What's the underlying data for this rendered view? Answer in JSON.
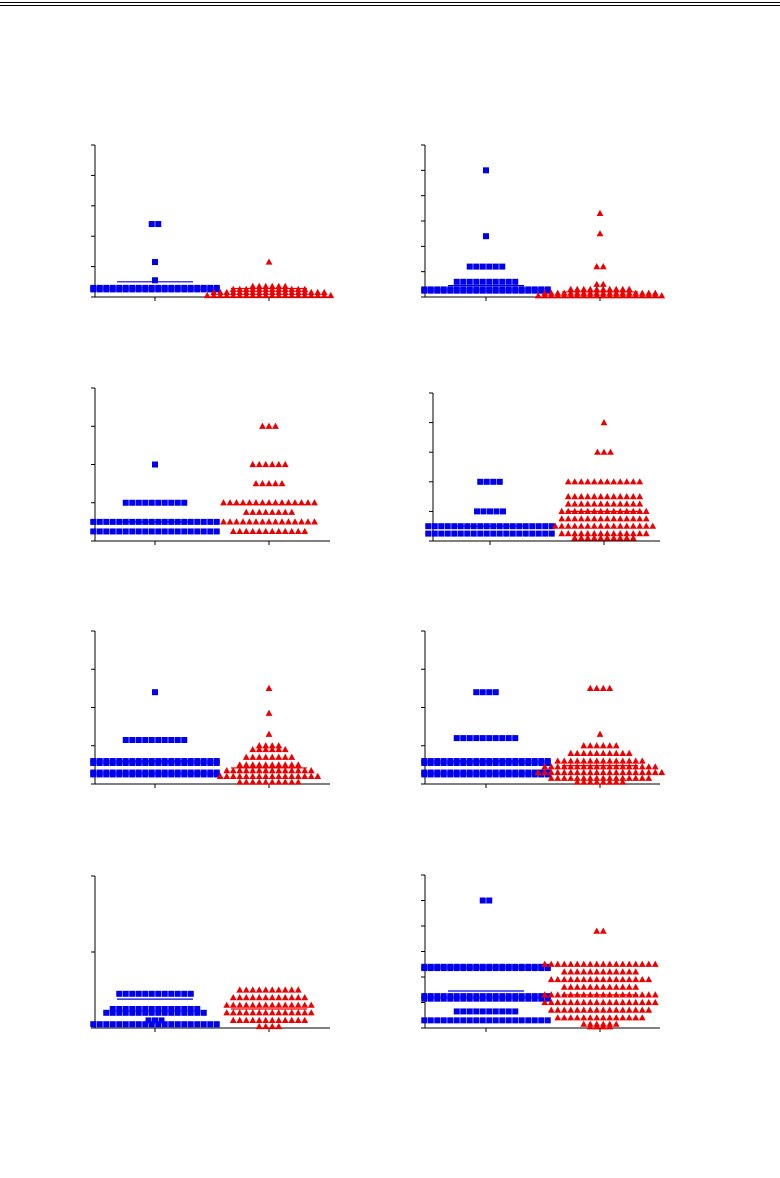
{
  "page": {
    "header_rule_color": "#000000"
  },
  "colors": {
    "group_a": "#0000ee",
    "group_b": "#ee0000",
    "axis": "#000000"
  },
  "chart_data": [
    {
      "type": "scatter",
      "ylim": [
        0,
        5
      ],
      "yticks": 5,
      "groups": [
        {
          "marker": "square",
          "color": "#0000ee",
          "mean": 0.5,
          "points": [
            {
              "y": 2.4,
              "n": 2
            },
            {
              "y": 1.15,
              "n": 1
            },
            {
              "y": 0.55,
              "n": 1
            },
            {
              "y": 0.3,
              "n": 20
            },
            {
              "y": 0.25,
              "n": 20
            }
          ]
        },
        {
          "marker": "triangle",
          "color": "#ee0000",
          "mean": 0.28,
          "points": [
            {
              "y": 1.15,
              "n": 1
            },
            {
              "y": 0.35,
              "n": 6
            },
            {
              "y": 0.25,
              "n": 12
            },
            {
              "y": 0.15,
              "n": 18
            },
            {
              "y": 0.05,
              "n": 20
            }
          ]
        }
      ]
    },
    {
      "type": "scatter",
      "ylim": [
        0,
        6
      ],
      "yticks": 6,
      "groups": [
        {
          "marker": "square",
          "color": "#0000ee",
          "mean": 0.45,
          "points": [
            {
              "y": 5.0,
              "n": 1
            },
            {
              "y": 2.4,
              "n": 1
            },
            {
              "y": 1.2,
              "n": 6
            },
            {
              "y": 0.6,
              "n": 10
            },
            {
              "y": 0.3,
              "n": 20
            },
            {
              "y": 0.25,
              "n": 20
            }
          ]
        },
        {
          "marker": "triangle",
          "color": "#ee0000",
          "mean": 0.2,
          "points": [
            {
              "y": 3.3,
              "n": 1
            },
            {
              "y": 2.5,
              "n": 1
            },
            {
              "y": 1.2,
              "n": 2
            },
            {
              "y": 0.5,
              "n": 2
            },
            {
              "y": 0.3,
              "n": 10
            },
            {
              "y": 0.15,
              "n": 18
            },
            {
              "y": 0.05,
              "n": 20
            }
          ]
        }
      ]
    },
    {
      "type": "scatter",
      "ylim": [
        0,
        4
      ],
      "yticks": 4,
      "groups": [
        {
          "marker": "square",
          "color": "#0000ee",
          "mean": 0.5,
          "points": [
            {
              "y": 2.0,
              "n": 1
            },
            {
              "y": 1.0,
              "n": 10
            },
            {
              "y": 0.5,
              "n": 20
            },
            {
              "y": 0.25,
              "n": 20
            }
          ]
        },
        {
          "marker": "triangle",
          "color": "#ee0000",
          "mean": 0.95,
          "points": [
            {
              "y": 3.0,
              "n": 3
            },
            {
              "y": 2.0,
              "n": 6
            },
            {
              "y": 1.5,
              "n": 5
            },
            {
              "y": 1.0,
              "n": 15
            },
            {
              "y": 0.75,
              "n": 8
            },
            {
              "y": 0.5,
              "n": 15
            },
            {
              "y": 0.25,
              "n": 12
            }
          ]
        }
      ]
    },
    {
      "type": "scatter",
      "ylim": [
        0,
        5
      ],
      "yticks": 5,
      "groups": [
        {
          "marker": "square",
          "color": "#0000ee",
          "mean": 0.5,
          "points": [
            {
              "y": 2.0,
              "n": 4
            },
            {
              "y": 1.0,
              "n": 5
            },
            {
              "y": 0.5,
              "n": 20
            },
            {
              "y": 0.25,
              "n": 20
            }
          ]
        },
        {
          "marker": "triangle",
          "color": "#ee0000",
          "mean": 1.0,
          "points": [
            {
              "y": 4.0,
              "n": 1
            },
            {
              "y": 3.0,
              "n": 3
            },
            {
              "y": 2.0,
              "n": 12
            },
            {
              "y": 1.5,
              "n": 12
            },
            {
              "y": 1.25,
              "n": 12
            },
            {
              "y": 1.0,
              "n": 14
            },
            {
              "y": 0.75,
              "n": 14
            },
            {
              "y": 0.5,
              "n": 16
            },
            {
              "y": 0.25,
              "n": 14
            },
            {
              "y": 0.1,
              "n": 10
            }
          ]
        }
      ]
    },
    {
      "type": "scatter",
      "ylim": [
        0,
        4
      ],
      "yticks": 4,
      "groups": [
        {
          "marker": "square",
          "color": "#0000ee",
          "mean": 0.6,
          "points": [
            {
              "y": 2.4,
              "n": 1
            },
            {
              "y": 1.15,
              "n": 10
            },
            {
              "y": 0.6,
              "n": 20
            },
            {
              "y": 0.55,
              "n": 20
            },
            {
              "y": 0.3,
              "n": 20
            },
            {
              "y": 0.25,
              "n": 20
            }
          ]
        },
        {
          "marker": "triangle",
          "color": "#ee0000",
          "mean": 0.42,
          "points": [
            {
              "y": 2.5,
              "n": 1
            },
            {
              "y": 1.85,
              "n": 1
            },
            {
              "y": 1.3,
              "n": 1
            },
            {
              "y": 1.0,
              "n": 4
            },
            {
              "y": 0.9,
              "n": 6
            },
            {
              "y": 0.7,
              "n": 8
            },
            {
              "y": 0.5,
              "n": 10
            },
            {
              "y": 0.35,
              "n": 14
            },
            {
              "y": 0.2,
              "n": 16
            },
            {
              "y": 0.05,
              "n": 10
            }
          ]
        }
      ]
    },
    {
      "type": "scatter",
      "ylim": [
        0,
        4
      ],
      "yticks": 4,
      "groups": [
        {
          "marker": "square",
          "color": "#0000ee",
          "mean": 0.6,
          "points": [
            {
              "y": 2.4,
              "n": 4
            },
            {
              "y": 1.2,
              "n": 10
            },
            {
              "y": 0.6,
              "n": 20
            },
            {
              "y": 0.55,
              "n": 20
            },
            {
              "y": 0.3,
              "n": 20
            },
            {
              "y": 0.25,
              "n": 20
            }
          ]
        },
        {
          "marker": "triangle",
          "color": "#ee0000",
          "mean": 0.48,
          "points": [
            {
              "y": 2.5,
              "n": 4
            },
            {
              "y": 1.3,
              "n": 1
            },
            {
              "y": 1.0,
              "n": 6
            },
            {
              "y": 0.8,
              "n": 10
            },
            {
              "y": 0.6,
              "n": 14
            },
            {
              "y": 0.45,
              "n": 18
            },
            {
              "y": 0.3,
              "n": 20
            },
            {
              "y": 0.15,
              "n": 16
            },
            {
              "y": 0.05,
              "n": 8
            }
          ]
        }
      ]
    },
    {
      "type": "scatter",
      "ylim": [
        0,
        2
      ],
      "yticks": 2,
      "groups": [
        {
          "marker": "square",
          "color": "#0000ee",
          "mean": 0.38,
          "points": [
            {
              "y": 0.45,
              "n": 12
            },
            {
              "y": 0.25,
              "n": 14
            },
            {
              "y": 0.2,
              "n": 16
            },
            {
              "y": 0.1,
              "n": 3
            },
            {
              "y": 0.05,
              "n": 20
            }
          ]
        },
        {
          "marker": "triangle",
          "color": "#ee0000",
          "mean": 0.25,
          "points": [
            {
              "y": 0.5,
              "n": 10
            },
            {
              "y": 0.4,
              "n": 12
            },
            {
              "y": 0.3,
              "n": 14
            },
            {
              "y": 0.2,
              "n": 14
            },
            {
              "y": 0.1,
              "n": 12
            },
            {
              "y": 0.02,
              "n": 4
            }
          ]
        }
      ]
    },
    {
      "type": "scatter",
      "ylim": [
        0,
        6
      ],
      "yticks": 6,
      "groups": [
        {
          "marker": "square",
          "color": "#0000ee",
          "mean": 1.45,
          "points": [
            {
              "y": 5.0,
              "n": 2
            },
            {
              "y": 2.4,
              "n": 20
            },
            {
              "y": 2.35,
              "n": 20
            },
            {
              "y": 1.25,
              "n": 20
            },
            {
              "y": 1.15,
              "n": 20
            },
            {
              "y": 0.65,
              "n": 10
            },
            {
              "y": 0.3,
              "n": 20
            }
          ]
        },
        {
          "marker": "triangle",
          "color": "#ee0000",
          "mean": 1.3,
          "points": [
            {
              "y": 3.8,
              "n": 2
            },
            {
              "y": 2.5,
              "n": 18
            },
            {
              "y": 2.2,
              "n": 12
            },
            {
              "y": 1.9,
              "n": 16
            },
            {
              "y": 1.6,
              "n": 12
            },
            {
              "y": 1.3,
              "n": 18
            },
            {
              "y": 1.0,
              "n": 18
            },
            {
              "y": 0.7,
              "n": 16
            },
            {
              "y": 0.4,
              "n": 14
            },
            {
              "y": 0.15,
              "n": 6
            },
            {
              "y": 0.05,
              "n": 4
            }
          ]
        }
      ]
    }
  ]
}
